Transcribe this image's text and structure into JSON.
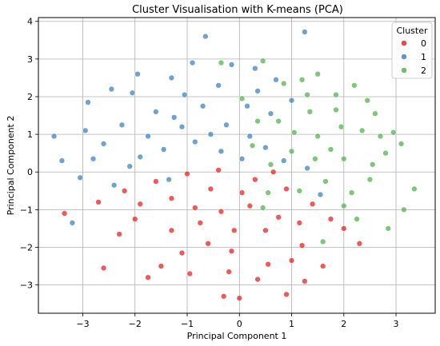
{
  "chart_data": {
    "type": "scatter",
    "title": "Cluster Visualisation with K-means (PCA)",
    "xlabel": "Principal Component 1",
    "ylabel": "Principal Component 2",
    "xlim": [
      -3.85,
      3.75
    ],
    "ylim": [
      -3.75,
      4.1
    ],
    "xticks": [
      -3,
      -2,
      -1,
      0,
      1,
      2,
      3
    ],
    "yticks": [
      -3,
      -2,
      -1,
      0,
      1,
      2,
      3,
      4
    ],
    "grid": true,
    "legend": {
      "title": "Cluster",
      "placement": "top-right"
    },
    "series": [
      {
        "name": "0",
        "color": "#e41a1c",
        "points": [
          [
            -3.35,
            -1.1
          ],
          [
            -2.6,
            -2.55
          ],
          [
            -2.3,
            -1.65
          ],
          [
            -1.75,
            -2.8
          ],
          [
            -1.5,
            -2.5
          ],
          [
            -0.95,
            -2.7
          ],
          [
            -0.3,
            -3.3
          ],
          [
            0.0,
            -3.35
          ],
          [
            0.9,
            -3.25
          ],
          [
            1.25,
            -2.9
          ],
          [
            1.6,
            -2.5
          ],
          [
            2.3,
            -1.9
          ],
          [
            2.0,
            -1.5
          ],
          [
            1.2,
            -1.95
          ],
          [
            0.55,
            -2.45
          ],
          [
            -0.15,
            -2.1
          ],
          [
            -0.6,
            -1.9
          ],
          [
            -1.3,
            -1.55
          ],
          [
            -2.0,
            -1.25
          ],
          [
            -2.7,
            -0.8
          ],
          [
            -2.2,
            -0.5
          ],
          [
            -1.6,
            -0.25
          ],
          [
            -1.0,
            -0.05
          ],
          [
            -0.4,
            0.05
          ],
          [
            0.3,
            -0.2
          ],
          [
            0.9,
            -0.45
          ],
          [
            1.4,
            -0.85
          ],
          [
            1.75,
            -1.25
          ],
          [
            0.75,
            -1.2
          ],
          [
            0.2,
            -0.9
          ],
          [
            -0.35,
            -1.05
          ],
          [
            -0.85,
            -0.95
          ],
          [
            -1.3,
            -0.7
          ],
          [
            -0.55,
            -0.45
          ],
          [
            0.05,
            -0.55
          ],
          [
            0.5,
            -1.55
          ],
          [
            -0.1,
            -1.55
          ],
          [
            -0.75,
            -1.35
          ],
          [
            -1.1,
            -2.15
          ],
          [
            0.35,
            -2.85
          ],
          [
            1.0,
            -2.35
          ],
          [
            -1.9,
            -0.85
          ],
          [
            -0.2,
            -2.65
          ],
          [
            0.65,
            0.0
          ],
          [
            1.15,
            -1.35
          ]
        ]
      },
      {
        "name": "1",
        "color": "#377eb8",
        "points": [
          [
            -3.55,
            0.95
          ],
          [
            -3.05,
            -0.15
          ],
          [
            -3.2,
            -1.35
          ],
          [
            -2.9,
            1.85
          ],
          [
            -2.45,
            2.2
          ],
          [
            -1.95,
            2.6
          ],
          [
            -1.3,
            2.5
          ],
          [
            -0.65,
            3.6
          ],
          [
            -0.9,
            2.9
          ],
          [
            -0.15,
            2.85
          ],
          [
            0.3,
            2.75
          ],
          [
            1.25,
            3.72
          ],
          [
            -2.6,
            0.75
          ],
          [
            -2.1,
            0.15
          ],
          [
            -1.75,
            0.95
          ],
          [
            -1.25,
            1.45
          ],
          [
            -0.7,
            1.75
          ],
          [
            -0.25,
            1.25
          ],
          [
            0.2,
            0.95
          ],
          [
            0.6,
            1.55
          ],
          [
            1.0,
            1.9
          ],
          [
            0.35,
            2.15
          ],
          [
            -0.4,
            2.3
          ],
          [
            -1.05,
            2.05
          ],
          [
            -1.6,
            1.6
          ],
          [
            -2.25,
            1.25
          ],
          [
            -2.8,
            0.35
          ],
          [
            -2.4,
            -0.35
          ],
          [
            -1.9,
            0.4
          ],
          [
            -1.45,
            0.6
          ],
          [
            -0.85,
            0.8
          ],
          [
            -0.35,
            0.55
          ],
          [
            0.05,
            0.35
          ],
          [
            0.5,
            0.65
          ],
          [
            0.85,
            0.3
          ],
          [
            1.3,
            0.1
          ],
          [
            1.55,
            -0.6
          ],
          [
            -1.1,
            1.2
          ],
          [
            -0.55,
            1.0
          ],
          [
            0.15,
            1.75
          ],
          [
            -2.05,
            2.1
          ],
          [
            -2.95,
            1.1
          ],
          [
            -3.4,
            0.3
          ],
          [
            -1.35,
            -0.2
          ],
          [
            0.7,
            2.45
          ]
        ]
      },
      {
        "name": "2",
        "color": "#4daf4a",
        "points": [
          [
            -0.35,
            2.9
          ],
          [
            0.45,
            2.95
          ],
          [
            1.5,
            2.6
          ],
          [
            2.2,
            2.3
          ],
          [
            2.6,
            1.55
          ],
          [
            3.1,
            0.75
          ],
          [
            3.35,
            -0.45
          ],
          [
            2.85,
            -1.5
          ],
          [
            1.6,
            -1.85
          ],
          [
            2.0,
            -0.9
          ],
          [
            2.5,
            -0.2
          ],
          [
            2.8,
            0.5
          ],
          [
            2.35,
            1.1
          ],
          [
            1.85,
            1.65
          ],
          [
            1.3,
            2.05
          ],
          [
            0.75,
            1.35
          ],
          [
            0.25,
            0.7
          ],
          [
            0.6,
            0.2
          ],
          [
            1.0,
            0.55
          ],
          [
            1.5,
            0.95
          ],
          [
            2.0,
            0.35
          ],
          [
            1.65,
            -0.25
          ],
          [
            1.15,
            -0.5
          ],
          [
            0.55,
            -0.55
          ],
          [
            2.25,
            -1.25
          ],
          [
            1.85,
            2.05
          ],
          [
            1.05,
            1.05
          ],
          [
            0.35,
            1.35
          ],
          [
            2.7,
            0.95
          ],
          [
            1.35,
            1.6
          ],
          [
            0.85,
            2.35
          ],
          [
            2.45,
            1.9
          ],
          [
            1.75,
            0.6
          ],
          [
            0.45,
            -0.95
          ],
          [
            2.15,
            -0.55
          ],
          [
            3.15,
            -1.0
          ],
          [
            2.95,
            1.05
          ],
          [
            1.2,
            2.45
          ],
          [
            0.05,
            1.95
          ],
          [
            1.95,
            1.2
          ],
          [
            2.55,
            0.2
          ],
          [
            1.45,
            0.35
          ]
        ]
      }
    ]
  }
}
